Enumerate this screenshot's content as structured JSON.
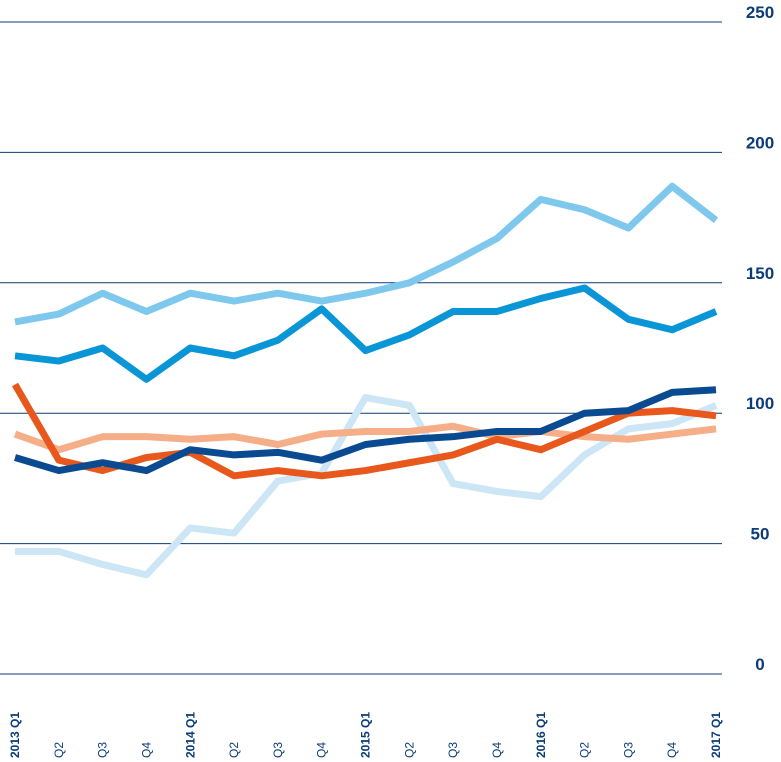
{
  "chart_data": {
    "type": "line",
    "categories": [
      "2013 Q1",
      "Q2",
      "Q3",
      "Q4",
      "2014 Q1",
      "Q2",
      "Q3",
      "Q4",
      "2015 Q1",
      "Q2",
      "Q3",
      "Q4",
      "2016 Q1",
      "Q2",
      "Q3",
      "Q4",
      "2017 Q1"
    ],
    "series": [
      {
        "color": "#cde6f6",
        "values": [
          47,
          47,
          42,
          38,
          56,
          54,
          74,
          77,
          106,
          103,
          73,
          70,
          68,
          84,
          94,
          96,
          103
        ]
      },
      {
        "color": "#f5ae88",
        "values": [
          92,
          86,
          91,
          91,
          90,
          91,
          88,
          92,
          93,
          93,
          95,
          91,
          93,
          91,
          90,
          92,
          94
        ]
      },
      {
        "color": "#e8581c",
        "values": [
          111,
          82,
          78,
          83,
          85,
          76,
          78,
          76,
          78,
          81,
          84,
          90,
          86,
          93,
          100,
          101,
          99
        ]
      },
      {
        "color": "#0a4a91",
        "values": [
          83,
          78,
          81,
          78,
          86,
          84,
          85,
          82,
          88,
          90,
          91,
          93,
          93,
          100,
          101,
          108,
          109
        ]
      },
      {
        "color": "#7ec8ee",
        "values": [
          135,
          138,
          146,
          139,
          146,
          143,
          146,
          143,
          146,
          150,
          158,
          167,
          182,
          178,
          171,
          187,
          174
        ]
      },
      {
        "color": "#0a96d6",
        "values": [
          122,
          120,
          125,
          113,
          125,
          122,
          128,
          140,
          124,
          130,
          139,
          139,
          144,
          148,
          136,
          132,
          139
        ]
      }
    ],
    "ylim": [
      0,
      250
    ],
    "yticks": [
      0,
      50,
      100,
      150,
      200,
      250
    ],
    "grid": true
  }
}
